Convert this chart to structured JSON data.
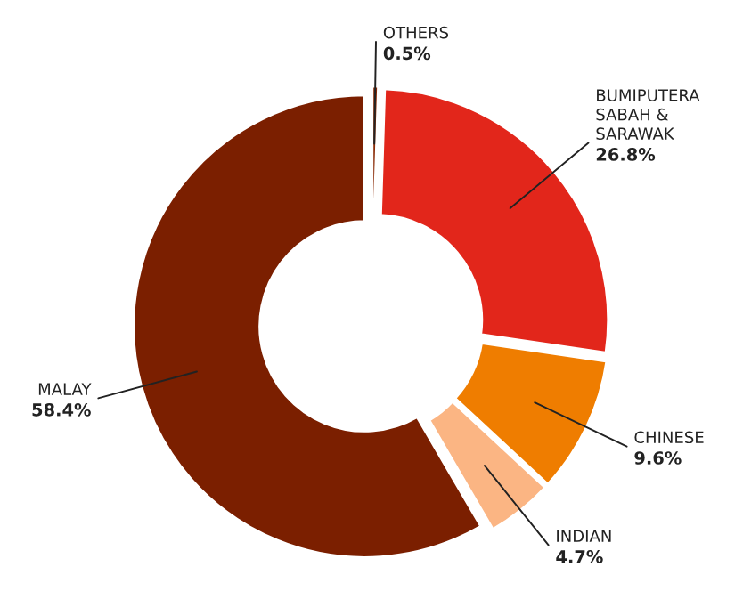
{
  "chart_data": {
    "type": "donut",
    "categories": [
      "OTHERS",
      "BUMIPUTERA\nSABAH &\nSARAWAK",
      "CHINESE",
      "INDIAN",
      "MALAY"
    ],
    "values": [
      0.5,
      26.8,
      9.6,
      4.7,
      58.4
    ],
    "colors": [
      "#8a2a06",
      "#e2261b",
      "#ef7d00",
      "#fbb583",
      "#7b1f00"
    ],
    "value_labels": [
      "0.5%",
      "26.8%",
      "9.6%",
      "4.7%",
      "58.4%"
    ]
  }
}
